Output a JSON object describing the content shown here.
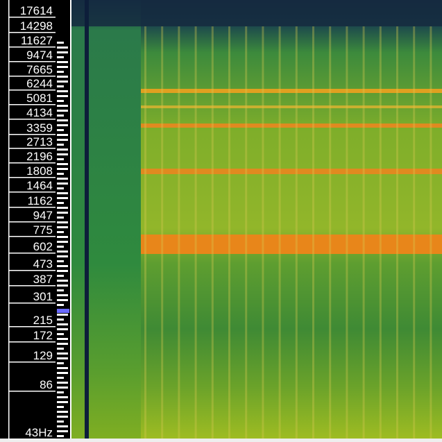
{
  "frequency_labels": [
    "17614",
    "14298",
    "11627",
    "9474",
    "7665",
    "6244",
    "5081",
    "4134",
    "3359",
    "2713",
    "2196",
    "1808",
    "1464",
    "1162",
    "947",
    "775",
    "602",
    "473",
    "387",
    "301",
    "215",
    "172",
    "129",
    "86",
    "43Hz"
  ]
}
